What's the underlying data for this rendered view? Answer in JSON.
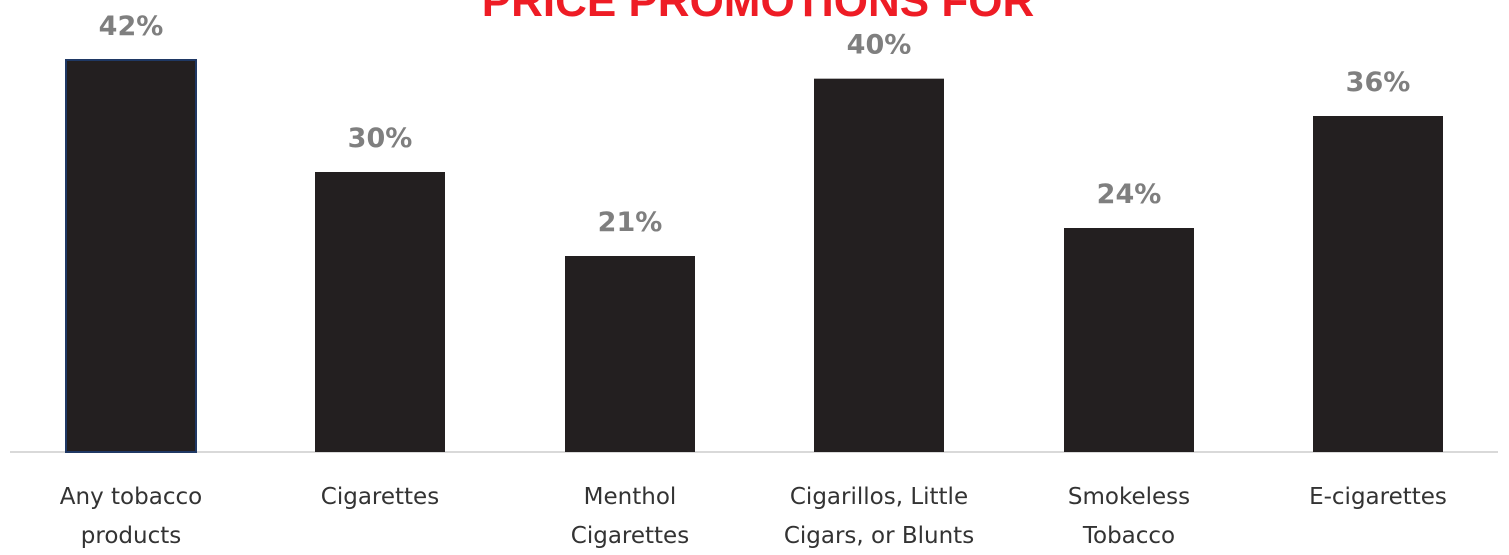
{
  "chart_data": {
    "type": "bar",
    "title": "PRICE PROMOTIONS FOR",
    "categories": [
      [
        "Any tobacco",
        "products"
      ],
      [
        "Cigarettes"
      ],
      [
        "Menthol",
        "Cigarettes"
      ],
      [
        "Cigarillos, Little",
        "Cigars, or Blunts"
      ],
      [
        "Smokeless",
        "Tobacco"
      ],
      [
        "E-cigarettes"
      ]
    ],
    "values": [
      42,
      30,
      21,
      40,
      24,
      36
    ],
    "value_labels": [
      "42%",
      "30%",
      "21%",
      "40%",
      "24%",
      "36%"
    ],
    "unit": "%",
    "ylim": [
      0,
      42
    ],
    "grid": false,
    "legend": "none",
    "colors": {
      "bar": "#231f20",
      "first_bar_outline": "#1f3864",
      "title": "#ee1c25",
      "value_label": "#7f7f7f",
      "category_label": "#333333",
      "axis": "#d9d9d9"
    }
  }
}
